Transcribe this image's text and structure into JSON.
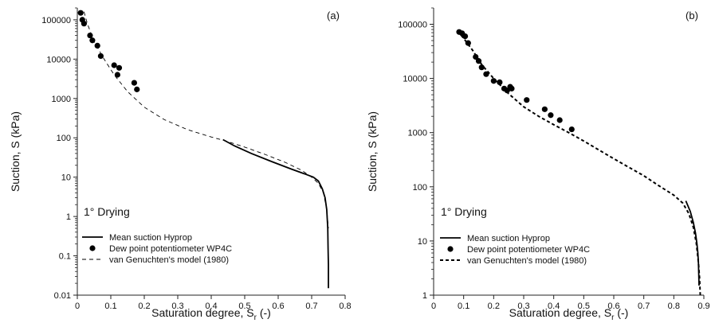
{
  "chart_data": [
    {
      "type": "scatter",
      "panel_label": "(a)",
      "title": "",
      "xlabel": "Saturation degree, S",
      "xlabel_sub": "r",
      "xlabel_suffix": " (-)",
      "ylabel": "Suction, S (kPa)",
      "xlim": [
        0,
        0.8
      ],
      "ylim": [
        0.01,
        200000
      ],
      "yscale": "log",
      "x_ticks": [
        0,
        0.1,
        0.2,
        0.3,
        0.4,
        0.5,
        0.6,
        0.7,
        0.8
      ],
      "x_tick_labels": [
        "0",
        "0.1",
        "0.2",
        "0.3",
        "0.4",
        "0.5",
        "0.6",
        "0.7",
        "0.8"
      ],
      "y_ticks": [
        0.01,
        0.1,
        1,
        10,
        100,
        1000,
        10000,
        100000
      ],
      "y_tick_labels": [
        "0.01",
        "0.1",
        "1",
        "10",
        "100",
        "1000",
        "10000",
        "100000"
      ],
      "annotation": "1° Drying",
      "legend_position": "bottom-left",
      "grid": false,
      "series": [
        {
          "name": "Mean suction Hyprop",
          "style": "solid",
          "x": [
            0.435,
            0.47,
            0.52,
            0.58,
            0.64,
            0.68,
            0.705,
            0.72,
            0.732,
            0.74,
            0.745,
            0.748,
            0.749,
            0.75,
            0.75,
            0.75
          ],
          "y": [
            90,
            62,
            40,
            25,
            16,
            12,
            10,
            8,
            5,
            3,
            1.5,
            0.5,
            0.15,
            0.06,
            0.03,
            0.015
          ]
        },
        {
          "name": "Dew point potentiometer WP4C",
          "style": "markers",
          "x": [
            0.01,
            0.015,
            0.02,
            0.038,
            0.045,
            0.06,
            0.07,
            0.11,
            0.12,
            0.125,
            0.17,
            0.178
          ],
          "y": [
            150000,
            100000,
            80000,
            40000,
            30000,
            22000,
            12000,
            7000,
            4000,
            6000,
            2500,
            1700
          ]
        },
        {
          "name": "van Genuchten's model (1980)",
          "style": "dashed",
          "x": [
            0.02,
            0.03,
            0.05,
            0.08,
            0.11,
            0.15,
            0.2,
            0.26,
            0.33,
            0.4,
            0.44,
            0.5,
            0.56,
            0.62,
            0.67,
            0.7,
            0.72,
            0.735,
            0.745,
            0.75
          ],
          "y": [
            160000,
            80000,
            28000,
            10000,
            4000,
            1500,
            600,
            290,
            160,
            105,
            85,
            58,
            38,
            24,
            15,
            10,
            7,
            4,
            1.5,
            0.5
          ]
        }
      ]
    },
    {
      "type": "scatter",
      "panel_label": "(b)",
      "title": "",
      "xlabel": "Saturation degree, S",
      "xlabel_sub": "r",
      "xlabel_suffix": " (-)",
      "ylabel": "Suction, S (kPa)",
      "xlim": [
        0,
        0.9
      ],
      "ylim": [
        1,
        200000
      ],
      "yscale": "log",
      "x_ticks": [
        0,
        0.1,
        0.2,
        0.3,
        0.4,
        0.5,
        0.6,
        0.7,
        0.8,
        0.9
      ],
      "x_tick_labels": [
        "0",
        "0.1",
        "0.2",
        "0.3",
        "0.4",
        "0.5",
        "0.6",
        "0.7",
        "0.8",
        "0.9"
      ],
      "y_ticks": [
        1,
        10,
        100,
        1000,
        10000,
        100000
      ],
      "y_tick_labels": [
        "1",
        "10",
        "100",
        "1000",
        "10000",
        "100000"
      ],
      "annotation": "1° Drying",
      "legend_position": "bottom-left",
      "grid": false,
      "series": [
        {
          "name": "Mean suction Hyprop",
          "style": "solid",
          "x": [
            0.84,
            0.855,
            0.865,
            0.872,
            0.877,
            0.88,
            0.882,
            0.883,
            0.884
          ],
          "y": [
            55,
            35,
            22,
            14,
            9,
            6,
            4,
            2.5,
            1.5
          ]
        },
        {
          "name": "Dew point potentiometer WP4C",
          "style": "markers",
          "x": [
            0.085,
            0.095,
            0.105,
            0.115,
            0.14,
            0.15,
            0.16,
            0.175,
            0.2,
            0.22,
            0.235,
            0.245,
            0.255,
            0.26,
            0.31,
            0.37,
            0.39,
            0.42,
            0.46
          ],
          "y": [
            72000,
            68000,
            60000,
            45000,
            25000,
            21000,
            16000,
            12000,
            9000,
            8500,
            6500,
            6000,
            7000,
            6500,
            4000,
            2700,
            2100,
            1700,
            1150
          ]
        },
        {
          "name": "van Genuchten's model (1980)",
          "style": "dashed",
          "x": [
            0.08,
            0.1,
            0.13,
            0.16,
            0.2,
            0.25,
            0.3,
            0.35,
            0.4,
            0.45,
            0.5,
            0.55,
            0.6,
            0.65,
            0.7,
            0.75,
            0.8,
            0.83,
            0.85,
            0.865,
            0.875,
            0.882,
            0.886,
            0.888
          ],
          "y": [
            75000,
            55000,
            33000,
            18000,
            10000,
            5200,
            3000,
            2000,
            1400,
            1000,
            700,
            480,
            330,
            230,
            160,
            105,
            70,
            50,
            32,
            18,
            9,
            4,
            2,
            1
          ]
        }
      ]
    }
  ]
}
